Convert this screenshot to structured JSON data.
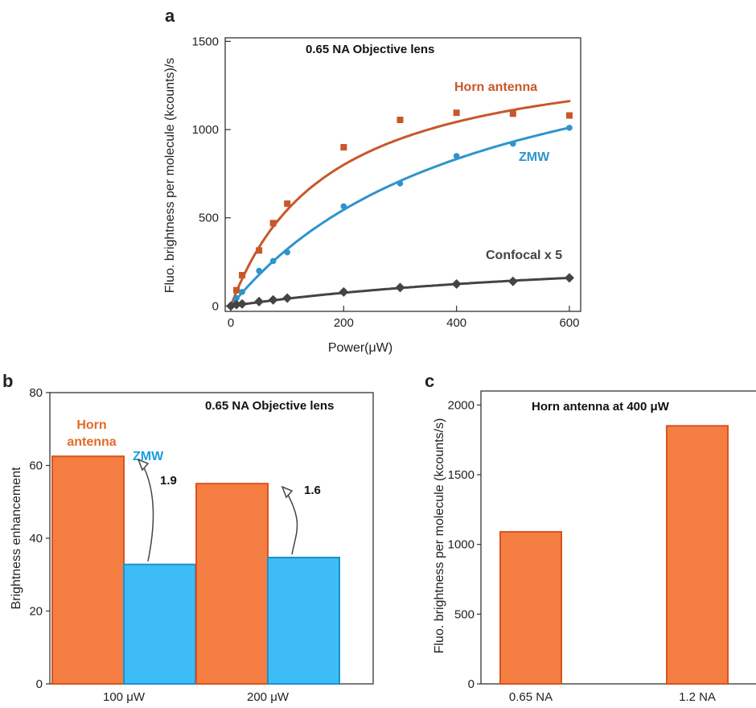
{
  "chart_data": [
    {
      "panel": "a",
      "type": "scatter",
      "title": "0.65 NA Objective lens",
      "xlabel": "Power(μW)",
      "ylabel": "Fluo. brightness per molecule (kcounts)/s",
      "xlim": [
        -10,
        620
      ],
      "ylim": [
        -30,
        1520
      ],
      "xticks": [
        0,
        200,
        400,
        600
      ],
      "yticks": [
        0,
        500,
        1000,
        1500
      ],
      "series": [
        {
          "name": "Horn antenna",
          "color": "#c8572a",
          "marker": "square",
          "x": [
            10,
            20,
            50,
            75,
            100,
            200,
            300,
            400,
            500,
            600
          ],
          "y": [
            90,
            175,
            315,
            470,
            580,
            900,
            1055,
            1095,
            1090,
            1080
          ],
          "fit": {
            "A": 1500,
            "Isat": 175
          }
        },
        {
          "name": "ZMW",
          "color": "#2e94cc",
          "marker": "circle",
          "x": [
            10,
            20,
            50,
            75,
            100,
            200,
            300,
            400,
            500,
            600
          ],
          "y": [
            45,
            80,
            200,
            255,
            305,
            565,
            695,
            850,
            920,
            1010
          ],
          "fit": {
            "A": 1760,
            "Isat": 445
          }
        },
        {
          "name": "Confocal x 5",
          "color": "#444444",
          "marker": "diamond",
          "x": [
            0,
            10,
            20,
            50,
            75,
            100,
            200,
            300,
            400,
            500,
            600
          ],
          "y": [
            0,
            8,
            12,
            25,
            35,
            45,
            80,
            105,
            125,
            140,
            160
          ],
          "fit": {
            "A": 365,
            "Isat": 770
          }
        }
      ]
    },
    {
      "panel": "b",
      "type": "bar",
      "title": "0.65 NA Objective lens",
      "xlabel": "",
      "ylabel": "Brightness enhancement",
      "ylim": [
        0,
        80
      ],
      "yticks": [
        0,
        20,
        40,
        60,
        80
      ],
      "categories": [
        "100 μW",
        "200 μW"
      ],
      "series": [
        {
          "name": "Horn antenna",
          "label_lines": [
            "Horn",
            "antenna"
          ],
          "color": "#f57f43",
          "edge": "#d9531e",
          "values": [
            62.5,
            55
          ]
        },
        {
          "name": "ZMW",
          "label_lines": [
            "ZMW"
          ],
          "color": "#3ebcf7",
          "edge": "#1d8fd0",
          "values": [
            32.8,
            34.7
          ]
        }
      ],
      "annotations": [
        "1.9",
        "1.6"
      ]
    },
    {
      "panel": "c",
      "type": "bar",
      "title": "Horn antenna at 400 μW",
      "xlabel": "",
      "ylabel": "Fluo. brightness per molecule (kcounts/s)",
      "ylim": [
        0,
        2100
      ],
      "yticks": [
        0,
        500,
        1000,
        1500,
        2000
      ],
      "categories": [
        "0.65 NA",
        "1.2 NA"
      ],
      "color": "#f57f43",
      "edge": "#d9531e",
      "values": [
        1090,
        1850
      ]
    }
  ]
}
